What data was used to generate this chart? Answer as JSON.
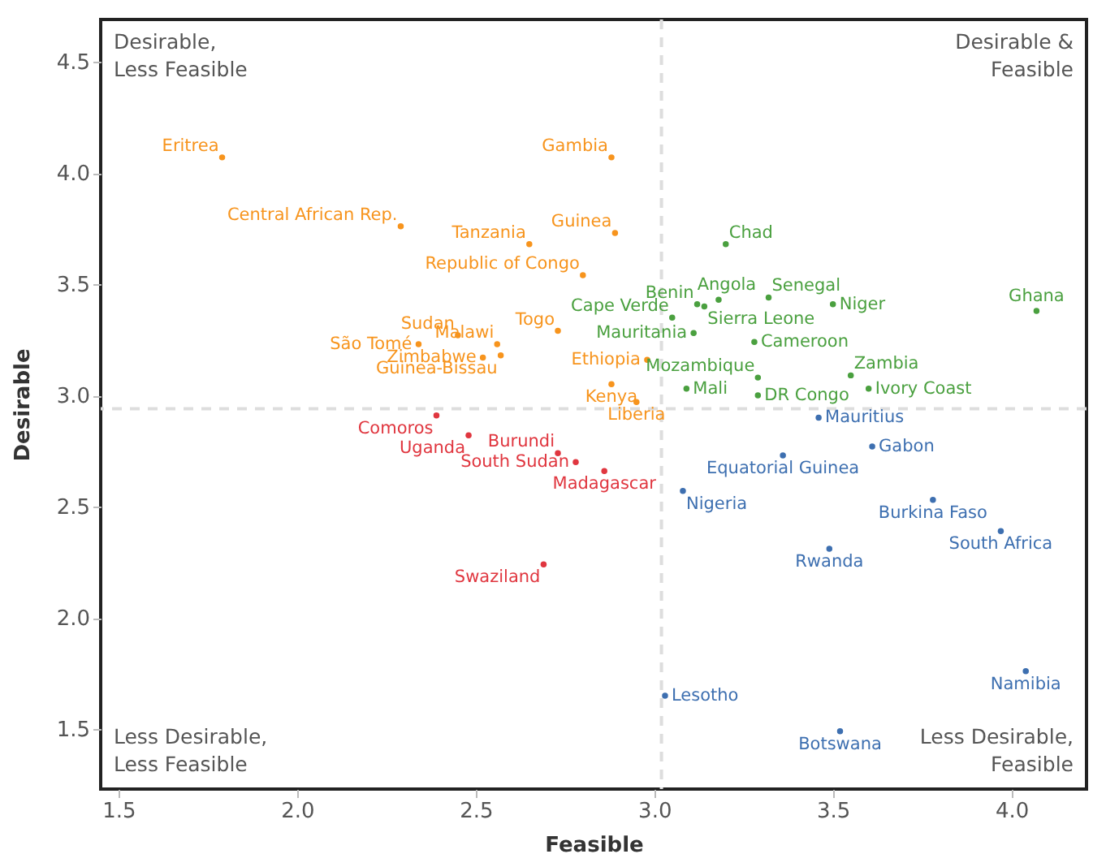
{
  "chart_data": {
    "type": "scatter",
    "xlabel": "Feasible",
    "ylabel": "Desirable",
    "xlim": [
      1.45,
      4.21
    ],
    "ylim": [
      1.23,
      4.69
    ],
    "xticks": [
      {
        "value": 1.5,
        "label": "1.5"
      },
      {
        "value": 2,
        "label": "2.0"
      },
      {
        "value": 2.5,
        "label": "2.5"
      },
      {
        "value": 3,
        "label": "3.0"
      },
      {
        "value": 3.5,
        "label": "3.5"
      },
      {
        "value": 4,
        "label": "4.0"
      }
    ],
    "yticks": [
      {
        "value": 1.5,
        "label": "1.5"
      },
      {
        "value": 2,
        "label": "2.0"
      },
      {
        "value": 2.5,
        "label": "2.5"
      },
      {
        "value": 3,
        "label": "3.0"
      },
      {
        "value": 3.5,
        "label": "3.5"
      },
      {
        "value": 4,
        "label": "4.0"
      },
      {
        "value": 4.5,
        "label": "4.5"
      }
    ],
    "grid": false,
    "marker": "circle",
    "series": [
      {
        "color": "#f7941d",
        "x": [
          1.79,
          2.88,
          2.29,
          2.89,
          2.65,
          2.8,
          2.73,
          2.45,
          2.56,
          2.34,
          2.52,
          2.57,
          2.98,
          2.88,
          2.95
        ],
        "values": [
          4.07,
          4.07,
          3.76,
          3.73,
          3.68,
          3.54,
          3.29,
          3.27,
          3.23,
          3.23,
          3.17,
          3.18,
          3.16,
          3.05,
          2.97
        ]
      },
      {
        "color": "#4aa03f",
        "x": [
          3.2,
          3.12,
          3.18,
          3.32,
          3.5,
          4.07,
          3.05,
          3.11,
          3.14,
          3.28,
          3.29,
          3.09,
          3.29,
          3.55,
          3.6
        ],
        "values": [
          3.68,
          3.41,
          3.43,
          3.44,
          3.41,
          3.38,
          3.35,
          3.28,
          3.4,
          3.24,
          3.08,
          3.03,
          3.0,
          3.09,
          3.03
        ]
      },
      {
        "color": "#e0363f",
        "x": [
          2.39,
          2.48,
          2.73,
          2.78,
          2.86,
          2.69
        ],
        "values": [
          2.91,
          2.82,
          2.74,
          2.7,
          2.66,
          2.24
        ]
      },
      {
        "color": "#3d6fb0",
        "x": [
          3.46,
          3.61,
          3.36,
          3.08,
          3.78,
          3.97,
          3.49,
          3.03,
          4.04,
          3.52
        ],
        "values": [
          2.9,
          2.77,
          2.73,
          2.57,
          2.53,
          2.39,
          2.31,
          1.65,
          1.76,
          1.49
        ]
      }
    ],
    "ref_lines": [
      {
        "axis": "x",
        "value": 3.02,
        "color": "#dddddd",
        "line_style": "dashed"
      },
      {
        "axis": "y",
        "value": 2.94,
        "color": "#dddddd",
        "line_style": "dashed"
      }
    ],
    "annotations": [
      "Desirable,\nLess Feasible",
      "Desirable &\nFeasible",
      "Less Desirable,\nLess Feasible",
      "Less Desirable,\nFeasible",
      {
        "text": "Eritrea",
        "x": 1.79,
        "y": 4.07
      },
      {
        "text": "Gambia",
        "x": 2.88,
        "y": 4.07
      },
      {
        "text": "Central African Rep.",
        "x": 2.29,
        "y": 3.76
      },
      {
        "text": "Guinea",
        "x": 2.89,
        "y": 3.73
      },
      {
        "text": "Tanzania",
        "x": 2.65,
        "y": 3.68
      },
      {
        "text": "Republic of Congo",
        "x": 2.8,
        "y": 3.54
      },
      {
        "text": "Togo",
        "x": 2.73,
        "y": 3.29
      },
      {
        "text": "Sudan",
        "x": 2.45,
        "y": 3.27
      },
      {
        "text": "Malawi",
        "x": 2.56,
        "y": 3.23
      },
      {
        "text": "São Tomé",
        "x": 2.34,
        "y": 3.23
      },
      {
        "text": "Zimbabwe",
        "x": 2.52,
        "y": 3.17
      },
      {
        "text": "Guinea-Bissau",
        "x": 2.57,
        "y": 3.18
      },
      {
        "text": "Ethiopia",
        "x": 2.98,
        "y": 3.16
      },
      {
        "text": "Kenya",
        "x": 2.88,
        "y": 3.05
      },
      {
        "text": "Liberia",
        "x": 2.95,
        "y": 2.97
      },
      {
        "text": "Chad",
        "x": 3.2,
        "y": 3.68
      },
      {
        "text": "Benin",
        "x": 3.12,
        "y": 3.41
      },
      {
        "text": "Angola",
        "x": 3.18,
        "y": 3.43
      },
      {
        "text": "Senegal",
        "x": 3.32,
        "y": 3.44
      },
      {
        "text": "Niger",
        "x": 3.5,
        "y": 3.41
      },
      {
        "text": "Ghana",
        "x": 4.07,
        "y": 3.38
      },
      {
        "text": "Cape Verde",
        "x": 3.05,
        "y": 3.35
      },
      {
        "text": "Mauritania",
        "x": 3.11,
        "y": 3.28
      },
      {
        "text": "Sierra Leone",
        "x": 3.14,
        "y": 3.4
      },
      {
        "text": "Cameroon",
        "x": 3.28,
        "y": 3.24
      },
      {
        "text": "Mozambique",
        "x": 3.29,
        "y": 3.08
      },
      {
        "text": "Mali",
        "x": 3.09,
        "y": 3.03
      },
      {
        "text": "DR Congo",
        "x": 3.29,
        "y": 3.0
      },
      {
        "text": "Zambia",
        "x": 3.55,
        "y": 3.09
      },
      {
        "text": "Ivory Coast",
        "x": 3.6,
        "y": 3.03
      },
      {
        "text": "Comoros",
        "x": 2.39,
        "y": 2.91
      },
      {
        "text": "Uganda",
        "x": 2.48,
        "y": 2.82
      },
      {
        "text": "Burundi",
        "x": 2.73,
        "y": 2.74
      },
      {
        "text": "South Sudan",
        "x": 2.78,
        "y": 2.7
      },
      {
        "text": "Madagascar",
        "x": 2.86,
        "y": 2.66
      },
      {
        "text": "Swaziland",
        "x": 2.69,
        "y": 2.24
      },
      {
        "text": "Mauritius",
        "x": 3.46,
        "y": 2.9
      },
      {
        "text": "Gabon",
        "x": 3.61,
        "y": 2.77
      },
      {
        "text": "Equatorial Guinea",
        "x": 3.36,
        "y": 2.73
      },
      {
        "text": "Nigeria",
        "x": 3.08,
        "y": 2.57
      },
      {
        "text": "Burkina Faso",
        "x": 3.78,
        "y": 2.53
      },
      {
        "text": "South Africa",
        "x": 3.97,
        "y": 2.39
      },
      {
        "text": "Rwanda",
        "x": 3.49,
        "y": 2.31
      },
      {
        "text": "Lesotho",
        "x": 3.03,
        "y": 1.65
      },
      {
        "text": "Namibia",
        "x": 4.04,
        "y": 1.76
      },
      {
        "text": "Botswana",
        "x": 3.52,
        "y": 1.49
      }
    ]
  }
}
